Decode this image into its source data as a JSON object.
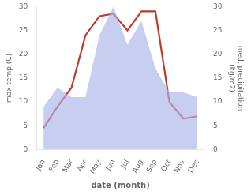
{
  "chart_data": {
    "type": "line",
    "xlabel": "date (month)",
    "ylabel": "max temp (C)",
    "y2label": "med. precipitation\n(kg/m2)",
    "categories": [
      "Jan",
      "Feb",
      "Mar",
      "Apr",
      "May",
      "Jun",
      "Jul",
      "Aug",
      "Sep",
      "Oct",
      "Nov",
      "Dec"
    ],
    "series": [
      {
        "type": "area",
        "axis": "y2",
        "color": "#aab4e8",
        "values": [
          9,
          13,
          11,
          11,
          24,
          30,
          22,
          27,
          17,
          12,
          12,
          11
        ]
      },
      {
        "type": "line",
        "axis": "y",
        "color": "#c0392b",
        "values": [
          4.5,
          9.0,
          13.0,
          24.0,
          28.0,
          28.5,
          25.0,
          29.0,
          29.0,
          10.0,
          6.5,
          7.0
        ]
      }
    ],
    "ylim": [
      0,
      30
    ],
    "yticks": [
      0,
      5,
      10,
      15,
      20,
      25,
      30
    ],
    "y2lim": [
      0,
      30
    ],
    "y2ticks": [
      0,
      5,
      10,
      15,
      20,
      25,
      30
    ],
    "grid": false
  }
}
